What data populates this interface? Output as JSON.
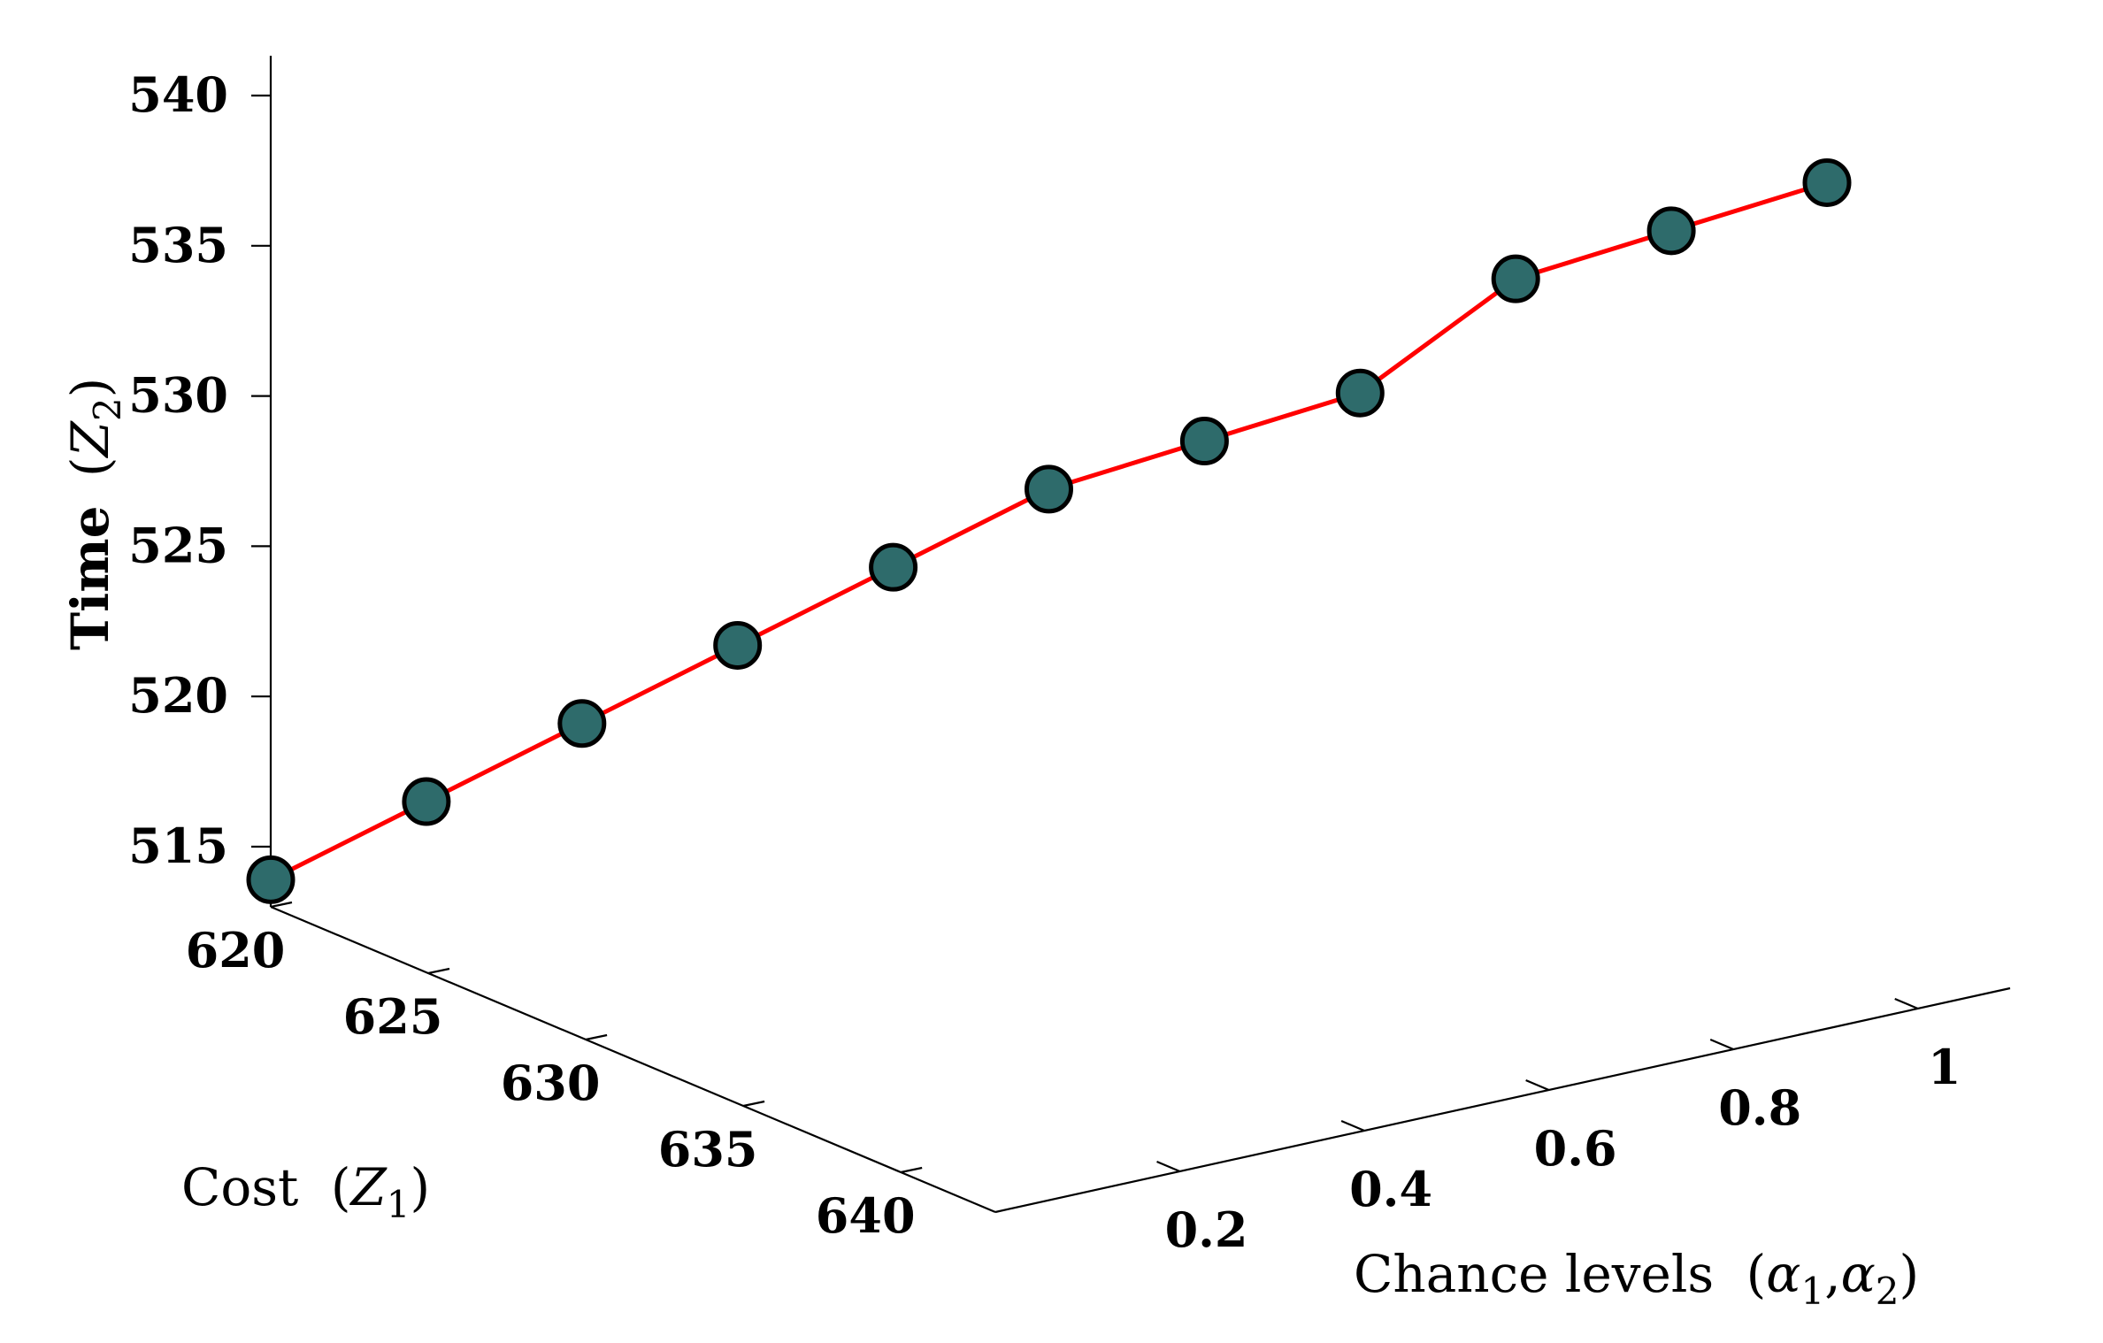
{
  "chart_data": {
    "type": "line",
    "projection": "3d",
    "x_axis": {
      "label_text": "Cost",
      "label_symbol": "Z",
      "label_subscript": "1",
      "ticks": [
        620,
        625,
        630,
        635,
        640
      ],
      "range": [
        620,
        643
      ]
    },
    "y_axis": {
      "label_text": "Chance levels",
      "label_symbols": [
        "α",
        "α"
      ],
      "label_subscripts": [
        "1",
        "2"
      ],
      "ticks": [
        0.2,
        0.4,
        0.6,
        0.8,
        1
      ],
      "tick_labels": [
        "0.2",
        "0.4",
        "0.6",
        "0.8",
        "1"
      ],
      "range": [
        0,
        1.1
      ]
    },
    "z_axis": {
      "label_text": "Time",
      "label_symbol": "Z",
      "label_subscript": "2",
      "ticks": [
        515,
        520,
        525,
        530,
        535,
        540
      ],
      "range": [
        512.6,
        542
      ]
    },
    "grid": false,
    "series": [
      {
        "color": "#ff0000",
        "marker_color": "#2e6b6b",
        "points": [
          {
            "x": 643.0,
            "y": 0.0,
            "z": 513.9
          },
          {
            "x": 641.6,
            "y": 0.1,
            "z": 516.5
          },
          {
            "x": 640.1,
            "y": 0.2,
            "z": 519.1
          },
          {
            "x": 638.6,
            "y": 0.3,
            "z": 521.7
          },
          {
            "x": 637.1,
            "y": 0.4,
            "z": 524.3
          },
          {
            "x": 635.7,
            "y": 0.5,
            "z": 526.9
          },
          {
            "x": 634.3,
            "y": 0.6,
            "z": 528.5
          },
          {
            "x": 633.0,
            "y": 0.7,
            "z": 530.1
          },
          {
            "x": 631.7,
            "y": 0.8,
            "z": 533.9
          },
          {
            "x": 630.4,
            "y": 0.9,
            "z": 535.5
          },
          {
            "x": 629.2,
            "y": 1.0,
            "z": 537.1
          }
        ]
      }
    ]
  }
}
